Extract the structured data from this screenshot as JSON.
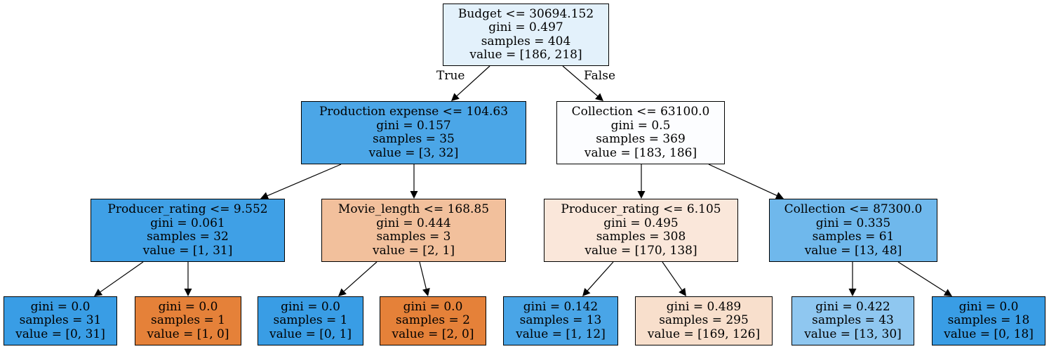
{
  "tree": {
    "nodes": [
      {
        "id": "n0",
        "lines": [
          "Budget <= 30694.152",
          "gini = 0.497",
          "samples = 404",
          "value = [186, 218]"
        ],
        "fill": "#e3f1fb"
      },
      {
        "id": "n1",
        "lines": [
          "Production expense <= 104.63",
          "gini = 0.157",
          "samples = 35",
          "value = [3, 32]"
        ],
        "fill": "#4ba6e7"
      },
      {
        "id": "n2",
        "lines": [
          "Collection <= 63100.0",
          "gini = 0.5",
          "samples = 369",
          "value = [183, 186]"
        ],
        "fill": "#fcfdff"
      },
      {
        "id": "n3",
        "lines": [
          "Producer_rating <= 9.552",
          "gini = 0.061",
          "samples = 32",
          "value = [1, 31]"
        ],
        "fill": "#3fa0e6"
      },
      {
        "id": "n4",
        "lines": [
          "Movie_length <= 168.85",
          "gini = 0.444",
          "samples = 3",
          "value = [2, 1]"
        ],
        "fill": "#f2c09c"
      },
      {
        "id": "n5",
        "lines": [
          "Producer_rating <= 6.105",
          "gini = 0.495",
          "samples = 308",
          "value = [170, 138]"
        ],
        "fill": "#fae7da"
      },
      {
        "id": "n6",
        "lines": [
          "Collection <= 87300.0",
          "gini = 0.335",
          "samples = 61",
          "value = [13, 48]"
        ],
        "fill": "#6fb8ec"
      },
      {
        "id": "n7",
        "lines": [
          "gini = 0.0",
          "samples = 31",
          "value = [0, 31]"
        ],
        "fill": "#399de5"
      },
      {
        "id": "n8",
        "lines": [
          "gini = 0.0",
          "samples = 1",
          "value = [1, 0]"
        ],
        "fill": "#e58139"
      },
      {
        "id": "n9",
        "lines": [
          "gini = 0.0",
          "samples = 1",
          "value = [0, 1]"
        ],
        "fill": "#399de5"
      },
      {
        "id": "n10",
        "lines": [
          "gini = 0.0",
          "samples = 2",
          "value = [2, 0]"
        ],
        "fill": "#e58139"
      },
      {
        "id": "n11",
        "lines": [
          "gini = 0.142",
          "samples = 13",
          "value = [1, 12]"
        ],
        "fill": "#49a5e7"
      },
      {
        "id": "n12",
        "lines": [
          "gini = 0.489",
          "samples = 295",
          "value = [169, 126]"
        ],
        "fill": "#f8dfcc"
      },
      {
        "id": "n13",
        "lines": [
          "gini = 0.422",
          "samples = 43",
          "value = [13, 30]"
        ],
        "fill": "#8fc7f0"
      },
      {
        "id": "n14",
        "lines": [
          "gini = 0.0",
          "samples = 18",
          "value = [0, 18]"
        ],
        "fill": "#399de5"
      }
    ],
    "edges": [
      {
        "from": "n0",
        "to": "n1"
      },
      {
        "from": "n0",
        "to": "n2"
      },
      {
        "from": "n1",
        "to": "n3"
      },
      {
        "from": "n1",
        "to": "n4"
      },
      {
        "from": "n2",
        "to": "n5"
      },
      {
        "from": "n2",
        "to": "n6"
      },
      {
        "from": "n3",
        "to": "n7"
      },
      {
        "from": "n3",
        "to": "n8"
      },
      {
        "from": "n4",
        "to": "n9"
      },
      {
        "from": "n4",
        "to": "n10"
      },
      {
        "from": "n5",
        "to": "n11"
      },
      {
        "from": "n5",
        "to": "n12"
      },
      {
        "from": "n6",
        "to": "n13"
      },
      {
        "from": "n6",
        "to": "n14"
      }
    ],
    "true_label": "True",
    "false_label": "False"
  }
}
